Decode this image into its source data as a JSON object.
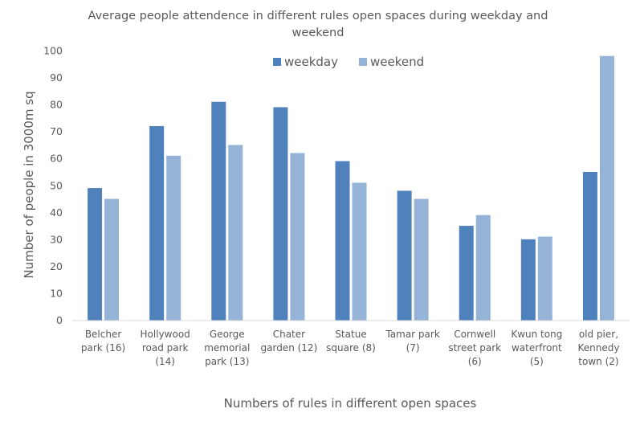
{
  "chart_data": {
    "type": "bar",
    "title": "Average people attendence in different rules open spaces during weekday and weekend",
    "title_lines": [
      "Average people attendence in different rules open spaces during weekday and",
      "weekend"
    ],
    "xlabel": "Numbers of rules in different open spaces",
    "ylabel": "Number of people in 3000m sq",
    "ylim": [
      0,
      100
    ],
    "yticks": [
      0,
      10,
      20,
      30,
      40,
      50,
      60,
      70,
      80,
      90,
      100
    ],
    "grid": false,
    "legend_position": "top-center",
    "categories": [
      [
        "Belcher",
        "park (16)"
      ],
      [
        "Hollywood",
        "road park",
        "(14)"
      ],
      [
        "George",
        "memorial",
        "park (13)"
      ],
      [
        "Chater",
        "garden (12)"
      ],
      [
        "Statue",
        "square (8)"
      ],
      [
        "Tamar park",
        "(7)"
      ],
      [
        "Cornwell",
        "street park",
        "(6)"
      ],
      [
        "Kwun tong",
        "waterfront",
        "(5)"
      ],
      [
        "old pier,",
        "Kennedy",
        "town (2)"
      ]
    ],
    "series": [
      {
        "name": "weekday",
        "color": "#4f81bd",
        "values": [
          49,
          72,
          81,
          79,
          59,
          48,
          35,
          30,
          55
        ]
      },
      {
        "name": "weekend",
        "color": "#95b3d7",
        "values": [
          45,
          61,
          65,
          62,
          51,
          45,
          39,
          31,
          98
        ]
      }
    ]
  }
}
